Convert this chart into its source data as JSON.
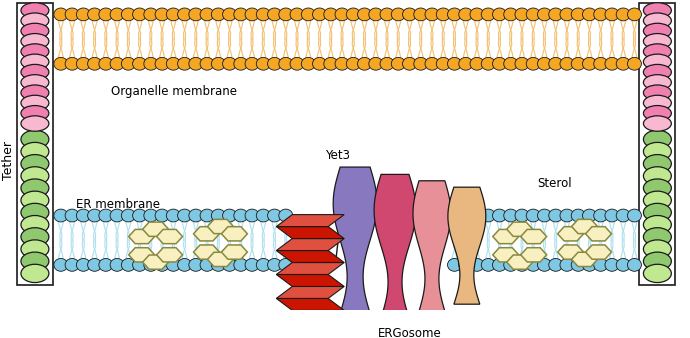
{
  "fig_width": 6.9,
  "fig_height": 3.38,
  "dpi": 100,
  "colors": {
    "orange_head": "#F5A623",
    "orange_tail": "#F5C070",
    "blue_head": "#7EC8E3",
    "blue_tail": "#ADE0F0",
    "pink_tether_1": "#F080B0",
    "pink_tether_2": "#F8B8D0",
    "green_tether_1": "#90C870",
    "green_tether_2": "#C0E890",
    "red_yet3_1": "#CC1500",
    "red_yet3_2": "#E05040",
    "purple_ergo": "#8878C0",
    "pink_ergo": "#D04870",
    "lpink_ergo": "#E89098",
    "peach_ergo": "#E8B880",
    "sterol_fill": "#F8F0C0",
    "sterol_edge": "#888840",
    "bg": "#FFFFFF",
    "outline": "#1A1A1A",
    "white": "#FFFFFF"
  },
  "labels": {
    "organelle_membrane": "Organelle membrane",
    "er_membrane": "ER membrane",
    "tether": "Tether",
    "yet3": "Yet3",
    "ergosome": "ERGosome",
    "sterol": "Sterol"
  }
}
